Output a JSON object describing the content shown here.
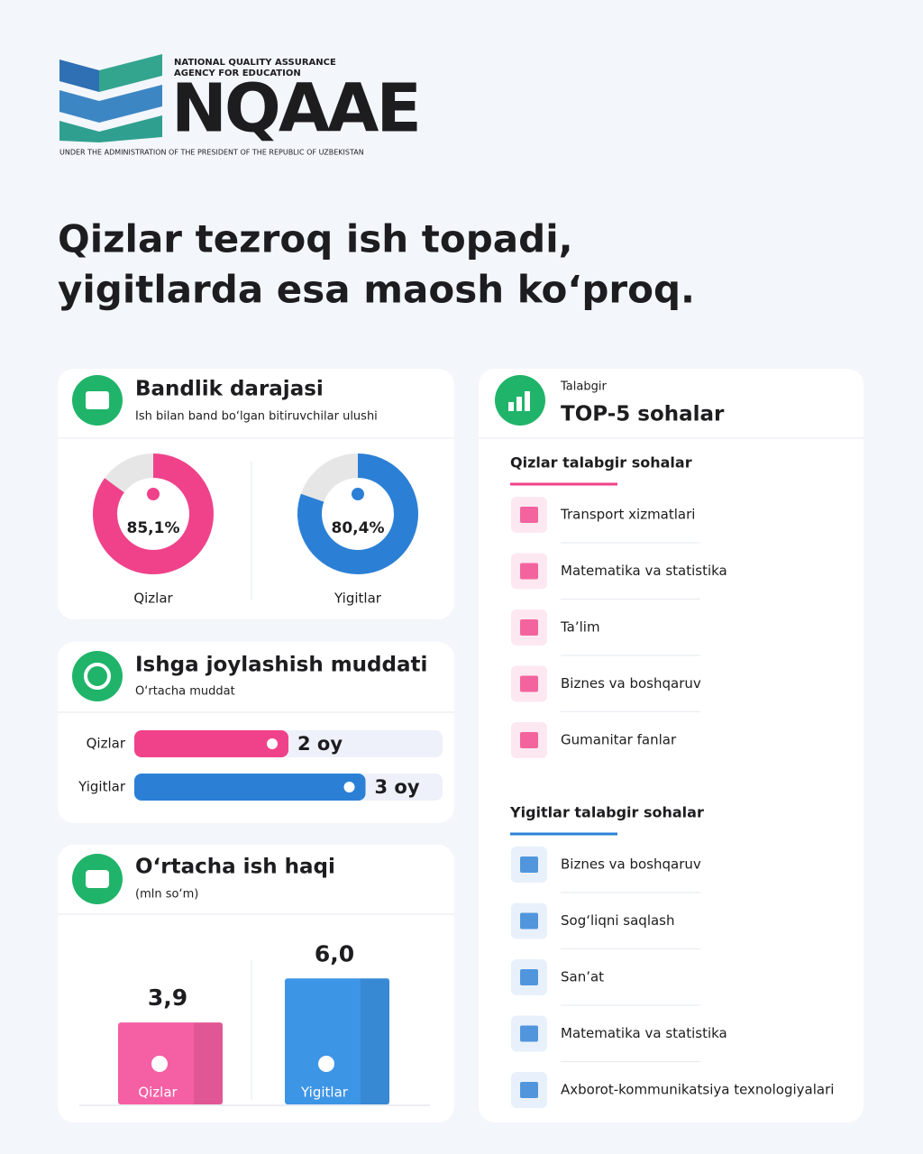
{
  "header": {
    "org_line1": "NATIONAL QUALITY ASSURANCE",
    "org_line2": "AGENCY FOR EDUCATION",
    "logo_text": "NQAAE",
    "org_sub": "UNDER THE ADMINISTRATION OF THE PRESIDENT OF THE REPUBLIC OF UZBEKISTAN"
  },
  "headline": [
    "Qizlar tezroq ish topadi,",
    "yigitlarda esa maosh ko‘proq."
  ],
  "chart_data": [
    {
      "type": "donut",
      "title": "Bandlik darajasi",
      "subtitle": "Ish bilan band bo‘lgan bitiruvchilar ulushi",
      "categories": [
        "Qizlar",
        "Yigitlar"
      ],
      "values": [
        85.1,
        80.4
      ],
      "value_labels": [
        "85,1%",
        "80,4%"
      ],
      "colors": [
        "#f0428a",
        "#2b80d6"
      ],
      "ylim": [
        0,
        100
      ]
    },
    {
      "type": "hbar",
      "title": "Ishga joylashish muddati",
      "subtitle": "O‘rtacha muddat",
      "categories": [
        "Qizlar",
        "Yigitlar"
      ],
      "values": [
        2,
        3
      ],
      "value_labels": [
        "2 oy",
        "3 oy"
      ],
      "colors": [
        "#f0428a",
        "#2b80d6"
      ],
      "xlim": [
        0,
        4
      ]
    },
    {
      "type": "column",
      "title": "O‘rtacha ish haqi",
      "subtitle": "(mln so‘m)",
      "categories": [
        "Qizlar",
        "Yigitlar"
      ],
      "values": [
        3.9,
        6.0
      ],
      "value_labels": [
        "3,9",
        "6,0"
      ],
      "colors": [
        "#f55fa3",
        "#3d95e6"
      ],
      "ylim": [
        0,
        7
      ]
    }
  ],
  "sectors": {
    "label": "Talabgir",
    "title": "TOP-5 sohalar",
    "groups": [
      {
        "title": "Qizlar talabgir sohalar",
        "color": "#f0428a",
        "items": [
          "Transport xizmatlari",
          "Matematika va statistika",
          "Ta’lim",
          "Biznes va boshqaruv",
          "Gumanitar fanlar"
        ]
      },
      {
        "title": "Yigitlar talabgir sohalar",
        "color": "#2b80d6",
        "items": [
          "Biznes va boshqaruv",
          "Sog‘liqni saqlash",
          "San’at",
          "Matematika va statistika",
          "Axborot-kommunikatsiya texnologiyalari"
        ]
      }
    ]
  }
}
